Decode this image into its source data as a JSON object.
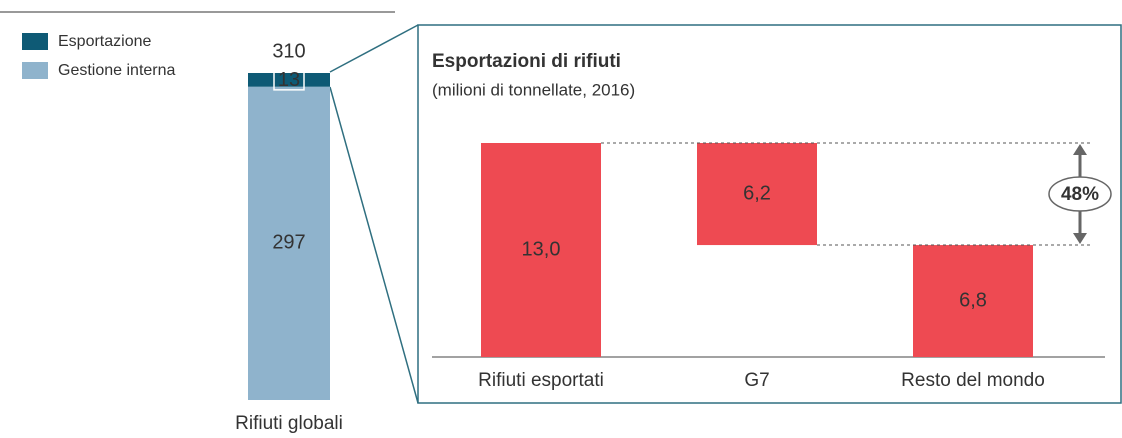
{
  "chart_data": [
    {
      "type": "stacked_bar",
      "categories": [
        "Rifiuti globali"
      ],
      "series": [
        {
          "name": "Gestione interna",
          "color": "#8fb3cc",
          "values": [
            297
          ]
        },
        {
          "name": "Esportazione",
          "color": "#0e5a75",
          "values": [
            13
          ]
        }
      ],
      "totals": [
        310
      ]
    },
    {
      "type": "waterfall",
      "title": "Esportazioni di rifiuti",
      "subtitle": "(milioni di tonnellate, 2016)",
      "categories": [
        "Rifiuti esportati",
        "G7",
        "Resto del mondo"
      ],
      "values": [
        13.0,
        6.2,
        6.8
      ],
      "value_labels": [
        "13,0",
        "6,2",
        "6,8"
      ],
      "color": "#ee4a52",
      "annotation": {
        "value": 48,
        "label": "48%"
      }
    }
  ]
}
